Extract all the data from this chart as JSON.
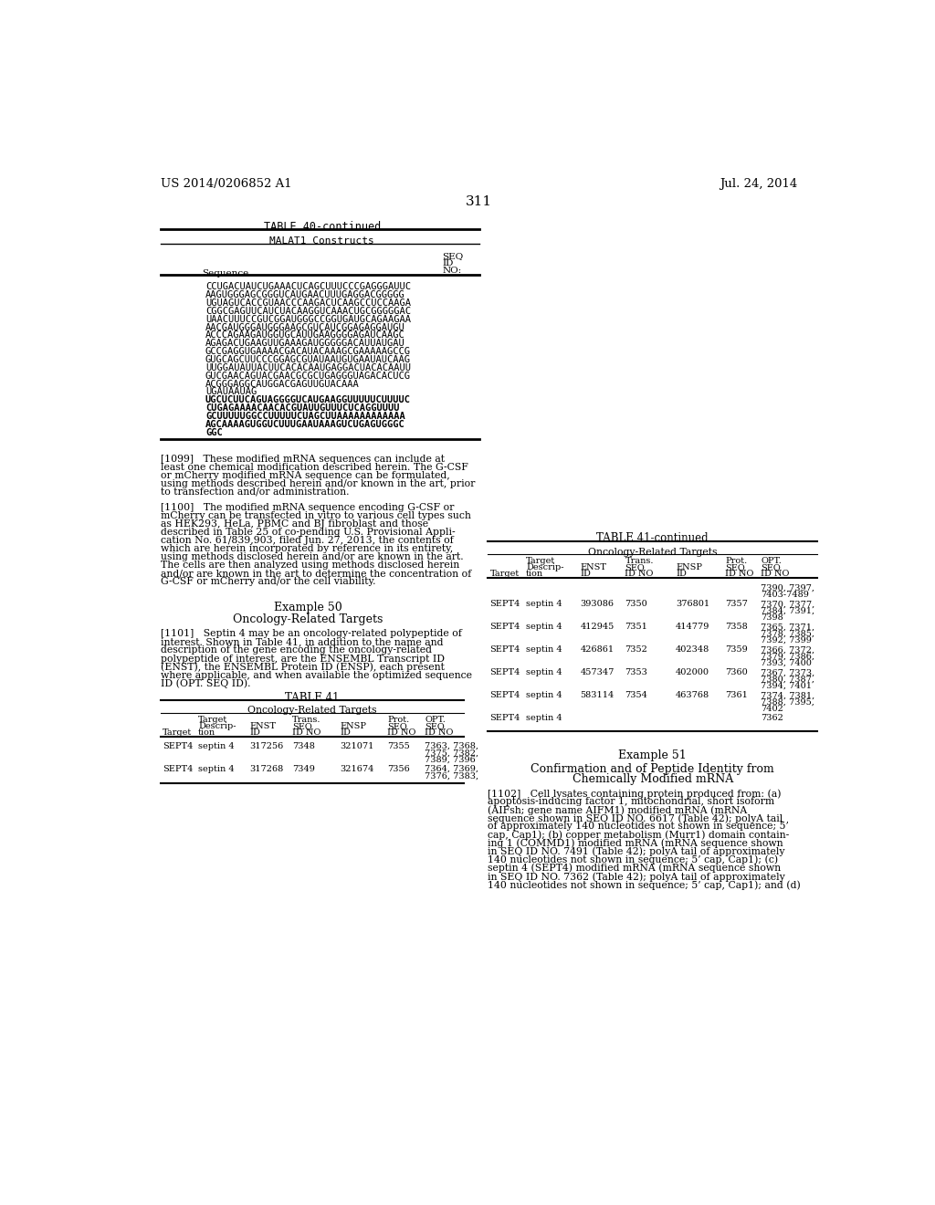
{
  "page_header_left": "US 2014/0206852 A1",
  "page_header_right": "Jul. 24, 2014",
  "page_number": "311",
  "table40_title": "TABLE 40-continued",
  "table40_subtitle": "MALAT1 Constructs",
  "table40_sequence_lines": [
    "CCUGACUAUCUGAAACUCAGCUUUCCCGAGGGAUUC",
    "AAGUGGGAGCGGGUCAUGAACUUUGAGGACGGGGG",
    "UGUAGUCACCGUAACCCAAGACUCAAGCCUCCAAGA",
    "CGGCGAGUUCAUCUACAAGGUCAAACUGCGGGGGAC",
    "UAACUUUCCGUCGGAUGGGCCGGUGAUGCAGAAGAA",
    "AACGAUGGGAUGGGAAGCGUCAUCGGAGAGGAUGU",
    "ACCCAGAAGAUGGUGCAUUGAAGGGGAGAUCAAGC",
    "AGAGACUGAAGUUGAAAGAUGGGGGACAUUAUGAU",
    "GCCGAGGUGAAAACGACAUACAAAGCGAAAAAGCCG",
    "GUGCAGCUUCCCGGAGCGUAUAAUGUGAAUAUCAAG",
    "UUGGAUAUUACUUCACACAAUGAGGACUACACAAUU",
    "GUCGAACAGUACGAACGCGCUGAGGGUAGACACUCG",
    "ACGGGAGGCAUGGACGAGUUGUACAAA",
    "UGAUAAUAG",
    "UGCUCUUCAGUAGGGGUCAUGAAGGUUUUUCUUUUC",
    "CUGAGAAAACAACACGUAUUGUUUCUCAGGUUUU",
    "GCUUUUUGGCCUUUUUCUAGCUUAAAAAAAAAAAA",
    "AGCAAAAGUGGUCUUUGAAUAAAGUCUGAGUGGGC",
    "GGC"
  ],
  "table40_bold_lines": [
    14,
    15,
    16,
    17,
    18
  ],
  "table41_cont_title": "TABLE 41-continued",
  "table41_cont_subtitle": "Oncology-Related Targets",
  "table41_cont_rows": [
    [
      "",
      "",
      "",
      "",
      "",
      "",
      "7390, 7397,\n7403-7489"
    ],
    [
      "SEPT4",
      "septin 4",
      "393086",
      "7350",
      "376801",
      "7357",
      "7370, 7377,\n7384, 7391,\n7398"
    ],
    [
      "SEPT4",
      "septin 4",
      "412945",
      "7351",
      "414779",
      "7358",
      "7365, 7371,\n7378, 7385,\n7392, 7399"
    ],
    [
      "SEPT4",
      "septin 4",
      "426861",
      "7352",
      "402348",
      "7359",
      "7366, 7372,\n7379, 7386,\n7393, 7400"
    ],
    [
      "SEPT4",
      "septin 4",
      "457347",
      "7353",
      "402000",
      "7360",
      "7367, 7373,\n7380, 7387,\n7394, 7401"
    ],
    [
      "SEPT4",
      "septin 4",
      "583114",
      "7354",
      "463768",
      "7361",
      "7374, 7381,\n7388, 7395,\n7402"
    ],
    [
      "SEPT4",
      "septin 4",
      "",
      "",
      "",
      "",
      "7362"
    ]
  ],
  "para1099_lines": [
    "[1099]   These modified mRNA sequences can include at",
    "least one chemical modification described herein. The G-CSF",
    "or mCherry modified mRNA sequence can be formulated,",
    "using methods described herein and/or known in the art, prior",
    "to transfection and/or administration."
  ],
  "para1100_lines": [
    "[1100]   The modified mRNA sequence encoding G-CSF or",
    "mCherry can be transfected in vitro to various cell types such",
    "as HEK293, HeLa, PBMC and BJ fibroblast and those",
    "described in Table 25 of co-pending U.S. Provisional Appli-",
    "cation No. 61/839,903, filed Jun. 27, 2013, the contents of",
    "which are herein incorporated by reference in its entirety,",
    "using methods disclosed herein and/or are known in the art.",
    "The cells are then analyzed using methods disclosed herein",
    "and/or are known in the art to determine the concentration of",
    "G-CSF or mCherry and/or the cell viability."
  ],
  "example50_title": "Example 50",
  "example50_subtitle": "Oncology-Related Targets",
  "para1101_lines": [
    "[1101]   Septin 4 may be an oncology-related polypeptide of",
    "interest. Shown in Table 41, in addition to the name and",
    "description of the gene encoding the oncology-related",
    "polypeptide of interest, are the ENSEMBL Transcript ID",
    "(ENST), the ENSEMBL Protein ID (ENSP), each present",
    "where applicable, and when available the optimized sequence",
    "ID (OPT. SEQ ID)."
  ],
  "table41_title": "TABLE 41",
  "table41_subtitle": "Oncology-Related Targets",
  "table41_rows": [
    [
      "SEPT4",
      "septin 4",
      "317256",
      "7348",
      "321071",
      "7355",
      "7363, 7368,\n7375, 7382,\n7389, 7396"
    ],
    [
      "SEPT4",
      "septin 4",
      "317268",
      "7349",
      "321674",
      "7356",
      "7364, 7369,\n7376, 7383,"
    ]
  ],
  "example51_title": "Example 51",
  "example51_sub1": "Confirmation and of Peptide Identity from",
  "example51_sub2": "Chemically Modified mRNA",
  "para1102_lines": [
    "[1102]   Cell lysates containing protein produced from: (a)",
    "apoptosis-inducing factor 1, mitochondrial, short isoform",
    "(AIFsh; gene name AIFM1) modified mRNA (mRNA",
    "sequence shown in SEQ ID NO. 6617 (Table 42); polyA tail",
    "of approximately 140 nucleotides not shown in sequence; 5’",
    "cap, Cap1); (b) copper metabolism (Murr1) domain contain-",
    "ing 1 (COMMD1) modified mRNA (mRNA sequence shown",
    "in SEQ ID NO. 7491 (Table 42); polyA tail of approximately",
    "140 nucleotides not shown in sequence; 5’ cap, Cap1); (c)",
    "septin 4 (SEPT4) modified mRNA (mRNA sequence shown",
    "in SEQ ID NO. 7362 (Table 42); polyA tail of approximately",
    "140 nucleotides not shown in sequence; 5’ cap, Cap1); and (d)"
  ],
  "bg_color": "#ffffff"
}
